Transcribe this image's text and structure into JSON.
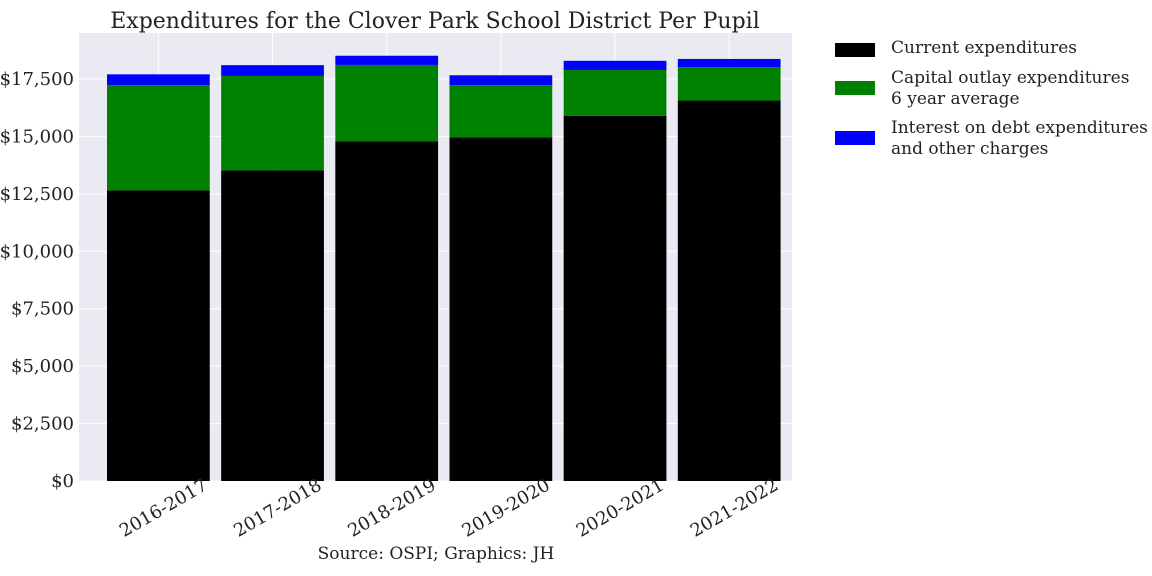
{
  "chart_data": {
    "type": "bar",
    "stacked": true,
    "title": "Expenditures for the Clover Park School District Per Pupil",
    "categories": [
      "2016-2017",
      "2017-2018",
      "2018-2019",
      "2019-2020",
      "2020-2021",
      "2021-2022"
    ],
    "series": [
      {
        "name": "Current expenditures",
        "color": "#000000",
        "values": [
          12650,
          13520,
          14790,
          14960,
          15890,
          16560
        ]
      },
      {
        "name_lines": [
          "Capital outlay expenditures",
          "6 year average"
        ],
        "color": "#008000",
        "values": [
          4580,
          4110,
          3320,
          2270,
          2000,
          1450
        ]
      },
      {
        "name_lines": [
          "Interest on debt expenditures",
          "and other charges"
        ],
        "color": "#0000ff",
        "values": [
          470,
          470,
          400,
          430,
          400,
          360
        ]
      }
    ],
    "yticks": [
      "$0",
      "$2,500",
      "$5,000",
      "$7,500",
      "$10,000",
      "$12,500",
      "$15,000",
      "$17,500"
    ],
    "ytick_values": [
      0,
      2500,
      5000,
      7500,
      10000,
      12500,
      15000,
      17500
    ],
    "ylim": [
      0,
      19500
    ],
    "grid": true,
    "legend_position": "outside-top-right"
  },
  "source_text": "Source: OSPI; Graphics: JH"
}
